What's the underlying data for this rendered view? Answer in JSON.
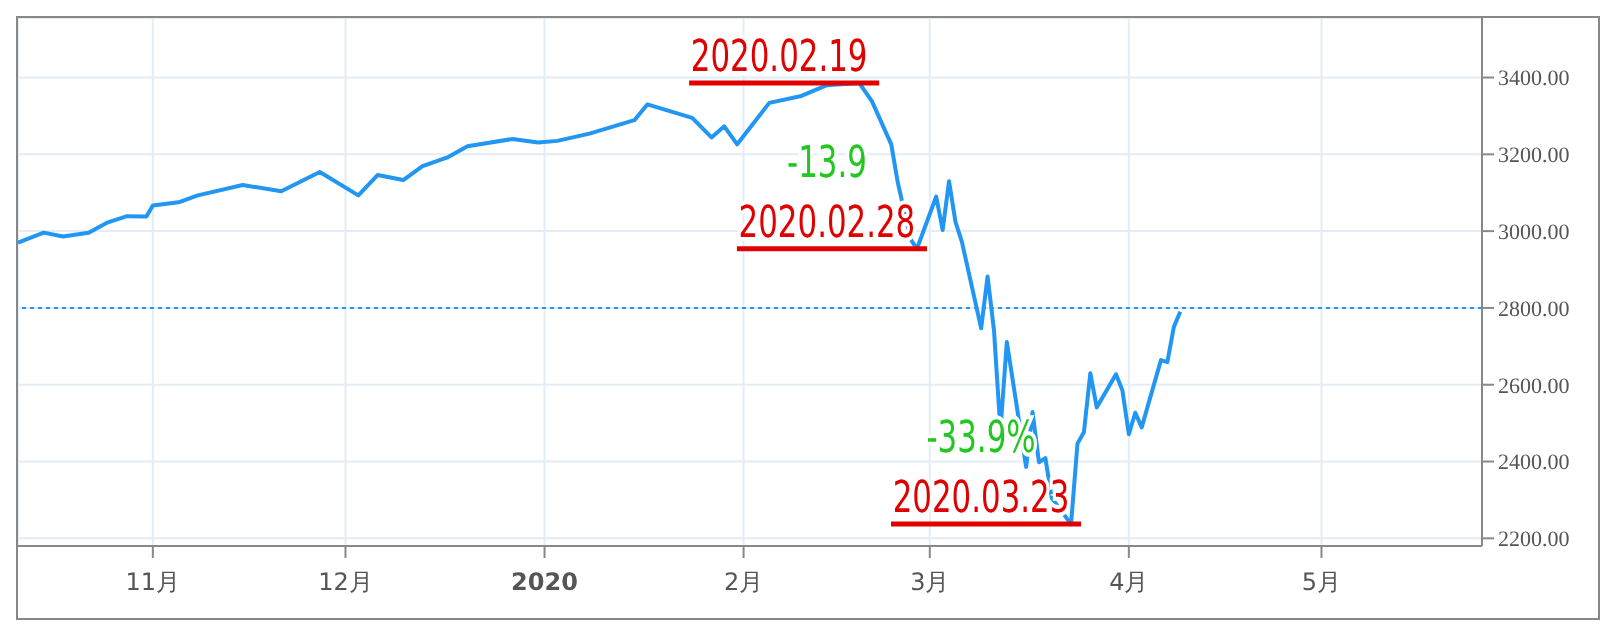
{
  "chart_data": {
    "type": "line",
    "x": [
      "2019-10-11",
      "2019-10-15",
      "2019-10-18",
      "2019-10-22",
      "2019-10-25",
      "2019-10-28",
      "2019-10-31",
      "2019-11-01",
      "2019-11-05",
      "2019-11-08",
      "2019-11-15",
      "2019-11-21",
      "2019-11-27",
      "2019-12-03",
      "2019-12-06",
      "2019-12-10",
      "2019-12-13",
      "2019-12-17",
      "2019-12-20",
      "2019-12-27",
      "2019-12-31",
      "2020-01-03",
      "2020-01-08",
      "2020-01-15",
      "2020-01-17",
      "2020-01-24",
      "2020-01-27",
      "2020-01-29",
      "2020-01-31",
      "2020-02-05",
      "2020-02-10",
      "2020-02-14",
      "2020-02-19",
      "2020-02-21",
      "2020-02-24",
      "2020-02-25",
      "2020-02-27",
      "2020-02-28",
      "2020-03-02",
      "2020-03-03",
      "2020-03-04",
      "2020-03-05",
      "2020-03-06",
      "2020-03-09",
      "2020-03-10",
      "2020-03-11",
      "2020-03-12",
      "2020-03-13",
      "2020-03-16",
      "2020-03-17",
      "2020-03-18",
      "2020-03-19",
      "2020-03-20",
      "2020-03-23",
      "2020-03-24",
      "2020-03-25",
      "2020-03-26",
      "2020-03-27",
      "2020-03-30",
      "2020-03-31",
      "2020-04-01",
      "2020-04-02",
      "2020-04-03",
      "2020-04-06",
      "2020-04-07",
      "2020-04-08",
      "2020-04-09"
    ],
    "series": [
      {
        "color": "#2196f3",
        "values": [
          2970,
          2996,
          2986,
          2996,
          3023,
          3039,
          3038,
          3067,
          3075,
          3093,
          3120,
          3104,
          3154,
          3093,
          3146,
          3133,
          3169,
          3193,
          3221,
          3240,
          3231,
          3235,
          3254,
          3289,
          3330,
          3295,
          3244,
          3273,
          3226,
          3334,
          3352,
          3380,
          3386,
          3338,
          3226,
          3128,
          2979,
          2954,
          3090,
          3003,
          3130,
          3024,
          2972,
          2747,
          2882,
          2741,
          2481,
          2711,
          2386,
          2529,
          2398,
          2409,
          2305,
          2237,
          2447,
          2476,
          2630,
          2541,
          2627,
          2585,
          2471,
          2527,
          2489,
          2664,
          2659,
          2750,
          2790
        ]
      }
    ],
    "xlim": [
      "2019-10-11",
      "2020-05-26"
    ],
    "xticks": [
      {
        "value": "2019-11-01",
        "label": "11月"
      },
      {
        "value": "2019-12-01",
        "label": "12月"
      },
      {
        "value": "2020-01-01",
        "label": "2020"
      },
      {
        "value": "2020-02-01",
        "label": "2月"
      },
      {
        "value": "2020-03-01",
        "label": "3月"
      },
      {
        "value": "2020-04-01",
        "label": "4月"
      },
      {
        "value": "2020-05-01",
        "label": "5月"
      }
    ],
    "ylim": [
      2180,
      3555
    ],
    "yticks": [
      {
        "value": 2200,
        "label": "2200.00"
      },
      {
        "value": 2400,
        "label": "2400.00"
      },
      {
        "value": 2600,
        "label": "2600.00"
      },
      {
        "value": 2800,
        "label": "2800.00"
      },
      {
        "value": 3000,
        "label": "3000.00"
      },
      {
        "value": 3200,
        "label": "3200.00"
      },
      {
        "value": 3400,
        "label": "3400.00"
      }
    ],
    "grid": true,
    "marker": "none",
    "line_style": "solid",
    "legend": false,
    "ref_lines": [
      {
        "axis": "y",
        "value": 2800,
        "color": "#2196f3",
        "line_style": "dotted"
      }
    ],
    "annotations": [
      {
        "text": "2020.02.19",
        "x": "2020-02-19",
        "y": 3386
      },
      {
        "text": "-13.9",
        "x": "2020-02-28",
        "y": 2954
      },
      {
        "text": "2020.02.28",
        "x": "2020-02-28",
        "y": 2954
      },
      {
        "text": "-33.9%",
        "x": "2020-03-23",
        "y": 2237
      },
      {
        "text": "2020.03.23",
        "x": "2020-03-23",
        "y": 2237
      }
    ]
  }
}
